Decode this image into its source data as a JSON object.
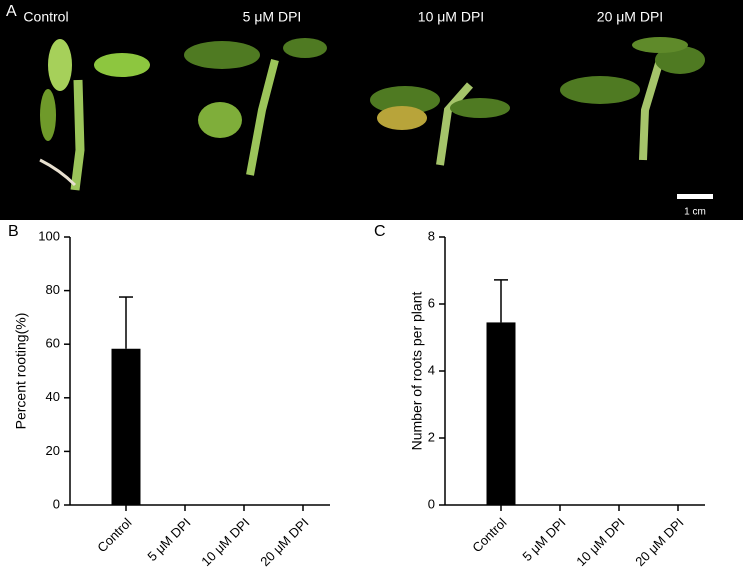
{
  "panel_a": {
    "panel_label": "A",
    "labels": [
      "Control",
      "5 μM DPI",
      "10 μM DPI",
      "20 μM DPI"
    ],
    "scale_label": "1 cm"
  },
  "chart_data": [
    {
      "type": "bar",
      "panel_label": "B",
      "y_label": "Percent rooting(%)",
      "categories": [
        "Control",
        "5 μM DPI",
        "10 μM DPI",
        "20 μM DPI"
      ],
      "values": [
        58.3,
        0,
        0,
        0
      ],
      "errors": [
        19.3,
        0,
        0,
        0
      ],
      "color": "#000000",
      "ylim": [
        0,
        100
      ],
      "yticks": [
        0,
        20,
        40,
        60,
        80,
        100
      ]
    },
    {
      "type": "bar",
      "panel_label": "C",
      "y_label": "Number of roots per plant",
      "categories": [
        "Control",
        "5 μM DPI",
        "10 μM DPI",
        "20 μM DPI"
      ],
      "values": [
        5.45,
        0,
        0,
        0
      ],
      "errors": [
        1.27,
        0,
        0,
        0
      ],
      "color": "#000000",
      "ylim": [
        0,
        8
      ],
      "yticks": [
        0,
        2,
        4,
        6,
        8
      ]
    }
  ]
}
